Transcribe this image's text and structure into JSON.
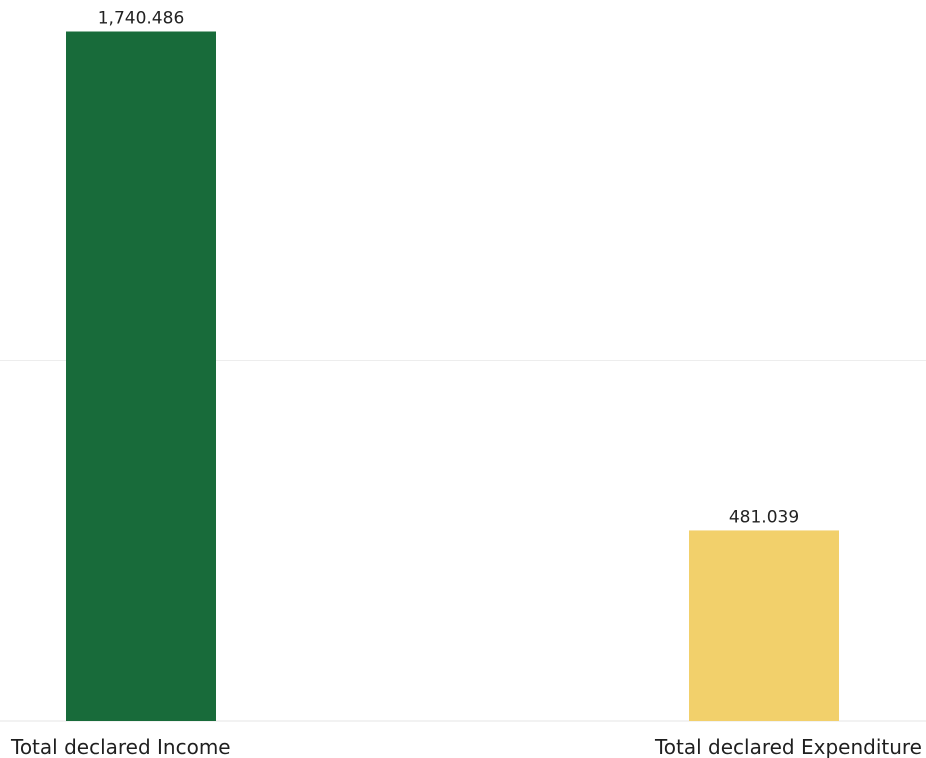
{
  "chart_data": {
    "type": "bar",
    "categories": [
      "Total declared Income",
      "Total declared Expenditure"
    ],
    "values": [
      1740.486,
      481.039
    ],
    "value_labels": [
      "1,740.486",
      "481.039"
    ],
    "colors": [
      "#186b3a",
      "#f2d06b"
    ],
    "ylim": [
      0,
      1820
    ],
    "grid": true,
    "gridline_values": [
      910
    ],
    "title": "",
    "xlabel": "",
    "ylabel": ""
  }
}
